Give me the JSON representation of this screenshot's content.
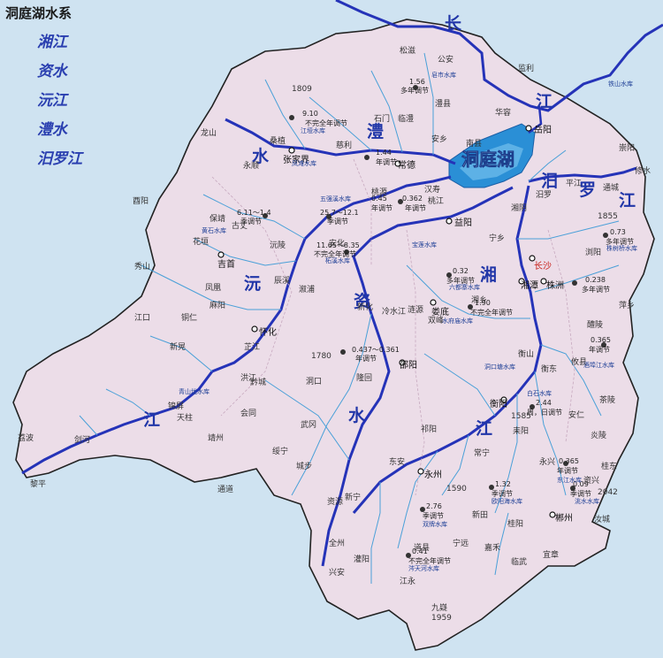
{
  "legend": {
    "title": "洞庭湖水系",
    "items": [
      "湘江",
      "资水",
      "沅江",
      "澧水",
      "汨罗江"
    ]
  },
  "colors": {
    "land": "#ecdde8",
    "border": "#222222",
    "main_river": "#2533b8",
    "minor_river": "#4aa0d8",
    "lake": "#2a8fd6",
    "outside": "#cfe3f1"
  },
  "river_labels": {
    "chang": "长",
    "jiang_top": "江",
    "xiang1": "湘",
    "xiang2": "江",
    "zi1": "资",
    "zi2": "水",
    "yuan1": "沅",
    "yuan2": "江",
    "li1": "澧",
    "li2": "水",
    "miluo1": "汨",
    "miluo2": "罗",
    "miluo3": "江",
    "lake": "洞庭湖"
  },
  "cities": {
    "zhangjiajie": "张家界",
    "changde": "常德",
    "yueyang": "岳阳",
    "yiyang": "益阳",
    "changsha": "长沙",
    "xiangtan": "湘潭",
    "zhuzhou": "株洲",
    "huaihua": "怀化",
    "shaoyang": "邵阳",
    "hengyang": "衡阳",
    "yongzhou": "永州",
    "chenzhou": "郴州",
    "jishou": "吉首",
    "loudi": "娄底"
  },
  "towns": [
    "龙山",
    "永顺",
    "桑植",
    "慈利",
    "石门",
    "澧县",
    "临澧",
    "南县",
    "华容",
    "安乡",
    "汉寿",
    "桃源",
    "沅陵",
    "古丈",
    "保靖",
    "花垣",
    "凤凰",
    "麻阳",
    "辰溪",
    "溆浦",
    "新晃",
    "芷江",
    "洪江",
    "会同",
    "靖州",
    "通道",
    "绥宁",
    "城步",
    "新宁",
    "武冈",
    "洞口",
    "隆回",
    "新化",
    "冷水江",
    "安化",
    "桃江",
    "宁乡",
    "湘乡",
    "涟源",
    "双峰",
    "衡山",
    "衡东",
    "攸县",
    "茶陵",
    "炎陵",
    "醴陵",
    "浏阳",
    "平江",
    "汨罗",
    "湘阴",
    "祁阳",
    "东安",
    "道县",
    "江永",
    "宁远",
    "新田",
    "嘉禾",
    "临武",
    "宜章",
    "桂阳",
    "资兴",
    "汝城",
    "耒阳",
    "常宁",
    "安仁",
    "永兴",
    "桂东",
    "黔城",
    "锦屏",
    "天柱",
    "剑河",
    "黎平",
    "酉阳",
    "秀山",
    "铜仁",
    "江口",
    "荔波",
    "全州",
    "资源",
    "灌阳",
    "兴安",
    "九嶷",
    "萍乡",
    "通城",
    "崇阳",
    "修水",
    "松滋",
    "公安",
    "监利"
  ],
  "stations": [
    {
      "value": "1.56",
      "type": "多年调节"
    },
    {
      "value": "9.10",
      "type": "不完全年调节"
    },
    {
      "value": "1.44",
      "type": "年调节"
    },
    {
      "value": "0.45",
      "type": "年调节"
    },
    {
      "value": "0.362",
      "type": "年调节"
    },
    {
      "value": "6.11～1.4",
      "type": "季调节"
    },
    {
      "value": "25.7～12.1",
      "type": "季调节"
    },
    {
      "value": "11.65～8.35",
      "type": "不完全年调节"
    },
    {
      "value": "0.32",
      "type": "多年调节"
    },
    {
      "value": "1.90",
      "type": "不完全年调节"
    },
    {
      "value": "0.73",
      "type": "多年调节"
    },
    {
      "value": "0.238",
      "type": "多年调节"
    },
    {
      "value": "0.365",
      "type": "年调节"
    },
    {
      "value": "0.437～0.361",
      "type": "年调节"
    },
    {
      "value": "2.44",
      "type": "周，日调节"
    },
    {
      "value": "0.365",
      "type": "年调节"
    },
    {
      "value": "0.09",
      "type": "季调节"
    },
    {
      "value": "1.32",
      "type": "季调节"
    },
    {
      "value": "2.76",
      "type": "季调节"
    },
    {
      "value": "0.41",
      "type": "不完全年调节"
    }
  ],
  "station_names": [
    "江垭水库",
    "皂市水库",
    "五强溪水库",
    "柘溪水库",
    "凤滩水库",
    "东江水库",
    "欧阳海水库",
    "双牌水库",
    "涔天河水库",
    "洮水水库",
    "株树桥水库",
    "铁山水库",
    "酒埠江水库",
    "水府庙水库",
    "六都寨水库",
    "黄石水库",
    "青山垅水库",
    "白石水库",
    "宝莲水库",
    "洞口塘水库"
  ],
  "elevations": [
    "1809",
    "1780",
    "1585",
    "2042",
    "1855",
    "1959",
    "1590"
  ]
}
